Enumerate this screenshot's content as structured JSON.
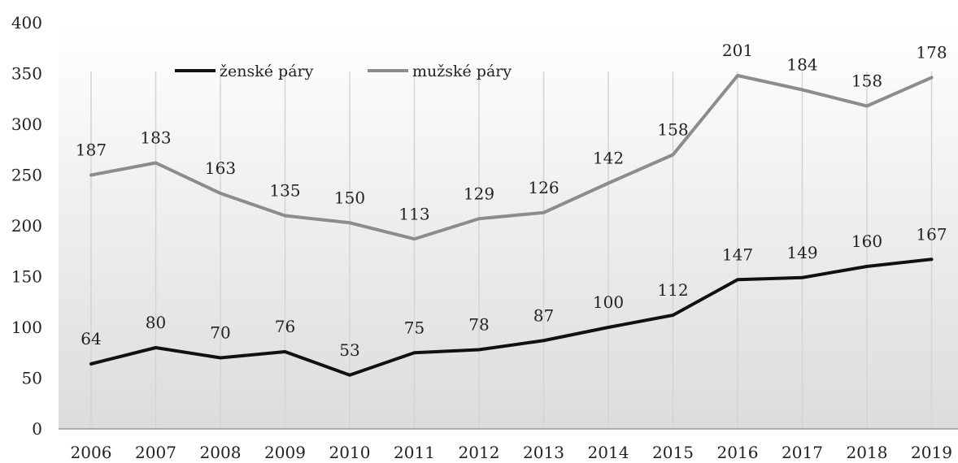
{
  "chart_data": {
    "type": "line",
    "categories": [
      "2006",
      "2007",
      "2008",
      "2009",
      "2010",
      "2011",
      "2012",
      "2013",
      "2014",
      "2015",
      "2016",
      "2017",
      "2018",
      "2019"
    ],
    "series": [
      {
        "name": "ženské páry",
        "color": "#111111",
        "values": [
          64,
          80,
          70,
          76,
          53,
          75,
          78,
          87,
          100,
          112,
          147,
          149,
          160,
          167
        ],
        "labels": [
          "64",
          "80",
          "70",
          "76",
          "53",
          "75",
          "78",
          "87",
          "100",
          "112",
          "147",
          "149",
          "160",
          "167"
        ]
      },
      {
        "name": "mužské páry",
        "color": "#8c8c8c",
        "values": [
          250,
          262,
          232,
          210,
          203,
          187,
          207,
          213,
          242,
          270,
          348,
          334,
          318,
          346
        ],
        "labels": [
          "187",
          "183",
          "163",
          "135",
          "150",
          "113",
          "129",
          "126",
          "142",
          "158",
          "201",
          "184",
          "158",
          "178"
        ]
      }
    ],
    "y_ticks": [
      "0",
      "50",
      "100",
      "150",
      "200",
      "250",
      "300",
      "350",
      "400"
    ],
    "ylim": [
      0,
      400
    ],
    "grid": "vertical",
    "legend_position": "top-left"
  }
}
